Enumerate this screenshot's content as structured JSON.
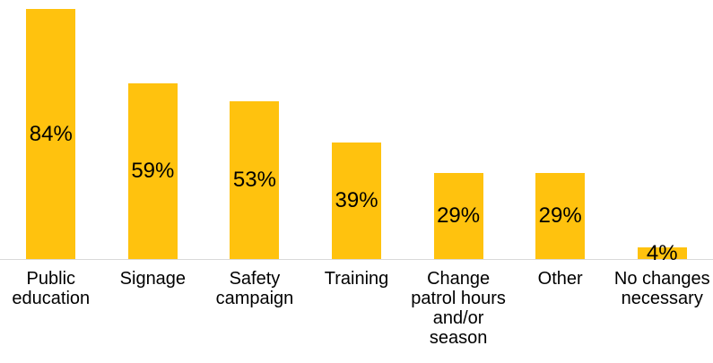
{
  "chart_data": {
    "type": "bar",
    "title": "",
    "xlabel": "",
    "ylabel": "",
    "ylim": [
      0,
      87
    ],
    "grid": false,
    "legend": false,
    "categories": [
      "Public education",
      "Signage",
      "Safety campaign",
      "Training",
      "Change patrol hours and/or season",
      "Other",
      "No changes necessary"
    ],
    "categories_display": [
      "Public\neducation",
      "Signage",
      "Safety\ncampaign",
      "Training",
      "Change\npatrol hours\nand/or\nseason",
      "Other",
      "No changes\nnecessary"
    ],
    "values": [
      84,
      59,
      53,
      39,
      29,
      29,
      4
    ],
    "value_labels": [
      "84%",
      "59%",
      "53%",
      "39%",
      "29%",
      "29%",
      "4%"
    ],
    "bar_color": "#FFC20E",
    "axis_line_color": "#D9D9D9",
    "text_color": "#000000",
    "background_color": "#FFFFFF"
  }
}
